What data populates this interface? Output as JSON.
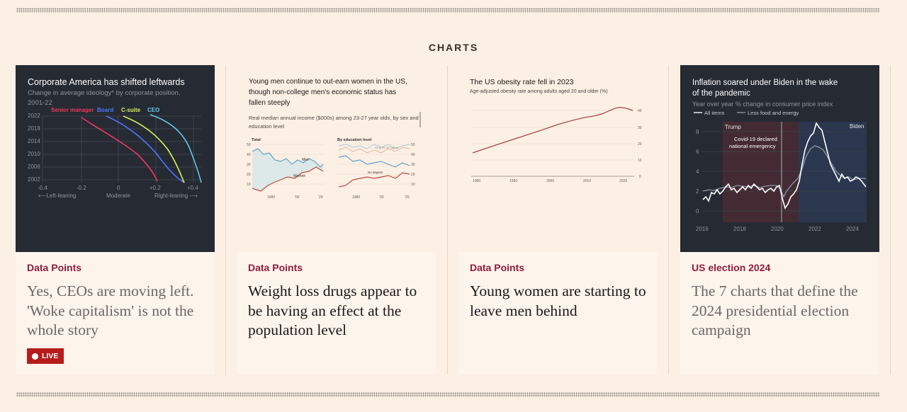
{
  "section": {
    "title": "CHARTS"
  },
  "cards": [
    {
      "label": "Data Points",
      "headline": "Yes, CEOs are moving left. 'Woke capitalism' is not the whole story",
      "live_badge": "LIVE",
      "thumbnail": {
        "title": "Corporate America has shifted leftwards",
        "subtitle_line1": "Change in average ideology* by corporate position,",
        "subtitle_line2": "2001-22",
        "legend": [
          "Senior manager",
          "Board",
          "C-suite",
          "CEO"
        ],
        "legend_colors": [
          "#f0385c",
          "#4a78ff",
          "#d7f05a",
          "#5fc8f0"
        ],
        "y_ticks": [
          "2022",
          "2018",
          "2014",
          "2010",
          "2006",
          "2002"
        ],
        "x_ticks": [
          "-0.4",
          "-0.2",
          "0",
          "+0.2",
          "+0.4"
        ],
        "x_axis_left": "⟵Left-leaning",
        "x_axis_mid": "Moderate",
        "x_axis_right": "Right-leaning ⟶"
      }
    },
    {
      "label": "Data Points",
      "headline": "Weight loss drugs appear to be having an effect at the population level",
      "thumbnail": {
        "title_line1": "Young men continue to out-earn women in the US,",
        "title_line2": "though non-college men's economic status has",
        "title_line3": "fallen steeply",
        "subtitle_line1": "Real median annual income ($000s) among 23-27 year olds, by sex and",
        "subtitle_line2": "education level",
        "panel_left": "Total",
        "panel_right": "By education level",
        "series_men": "Men",
        "series_women": "Women",
        "series_degree": "Degree or higher",
        "series_nodegree": "No degree",
        "y_ticks": [
          "50",
          "40",
          "30",
          "20",
          "10"
        ],
        "x_ticks": [
          "1980",
          "'00",
          "'20"
        ]
      }
    },
    {
      "label": "Data Points",
      "headline": "Young women are starting to leave men behind",
      "thumbnail": {
        "title": "The US obesity rate fell in 2023",
        "subtitle": "Age-adjusted obesity rate among adults aged 20 and older (%)",
        "y_ticks": [
          "40",
          "30",
          "20",
          "10",
          "0"
        ],
        "x_ticks": [
          "1980",
          "1990",
          "2000",
          "2010",
          "2020"
        ]
      }
    },
    {
      "label": "US election 2024",
      "headline": "The 7 charts that define the 2024 presidential election campaign",
      "thumbnail": {
        "title_line1": "Inflation soared under Biden in the wake",
        "title_line2": "of the pandemic",
        "subtitle": "Year over year % change in consumer price index",
        "legend_all": "All items",
        "legend_core": "Less food and energy",
        "label_trump": "Trump",
        "label_biden": "Biden",
        "annotation_line1": "Covid-19 declared",
        "annotation_line2": "national emergency",
        "y_ticks": [
          "8",
          "6",
          "4",
          "2",
          "0"
        ],
        "x_ticks": [
          "2016",
          "2018",
          "2020",
          "2022",
          "2024"
        ]
      }
    }
  ]
}
